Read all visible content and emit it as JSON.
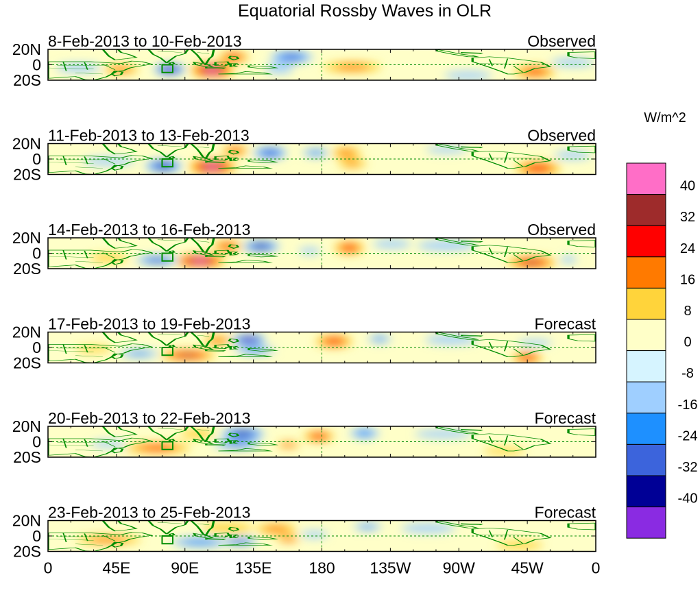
{
  "title": "Equatorial Rossby Waves in OLR",
  "colorbar": {
    "unit_label": "W/m^2",
    "tick_labels": [
      "40",
      "32",
      "24",
      "16",
      "8",
      "0",
      "-8",
      "-16",
      "-24",
      "-32",
      "-40"
    ],
    "colors_top_to_bottom": [
      "#ff6ec7",
      "#9e2b2b",
      "#ff0000",
      "#ff7a00",
      "#ffd43b",
      "#ffffc8",
      "#d6f4ff",
      "#9fcfff",
      "#1e90ff",
      "#3c64dc",
      "#000096",
      "#8a2be2"
    ]
  },
  "x_axis": {
    "tick_labels": [
      "0",
      "45E",
      "90E",
      "135E",
      "180",
      "135W",
      "90W",
      "45W",
      "0"
    ],
    "lon_range": [
      0,
      360
    ]
  },
  "y_axis": {
    "tick_labels": [
      "20N",
      "0",
      "20S"
    ],
    "lat_range": [
      -20,
      20
    ]
  },
  "panels": [
    {
      "date_range": "8-Feb-2013 to 10-Feb-2013",
      "status": "Observed"
    },
    {
      "date_range": "11-Feb-2013 to 13-Feb-2013",
      "status": "Observed"
    },
    {
      "date_range": "14-Feb-2013 to 16-Feb-2013",
      "status": "Observed"
    },
    {
      "date_range": "17-Feb-2013 to 19-Feb-2013",
      "status": "Forecast"
    },
    {
      "date_range": "20-Feb-2013 to 22-Feb-2013",
      "status": "Forecast"
    },
    {
      "date_range": "23-Feb-2013 to 25-Feb-2013",
      "status": "Forecast"
    }
  ],
  "anomaly_blobs": [
    [
      {
        "lon": 108,
        "lat": -7,
        "rx": 14,
        "ry": 10,
        "value": 42
      },
      {
        "lon": 80,
        "lat": -6,
        "rx": 10,
        "ry": 7,
        "value": -42
      },
      {
        "lon": 48,
        "lat": -6,
        "rx": 12,
        "ry": 6,
        "value": 22
      },
      {
        "lon": 122,
        "lat": 10,
        "rx": 10,
        "ry": 7,
        "value": 28
      },
      {
        "lon": 160,
        "lat": 10,
        "rx": 14,
        "ry": 8,
        "value": -26
      },
      {
        "lon": 200,
        "lat": -3,
        "rx": 20,
        "ry": 7,
        "value": 18
      },
      {
        "lon": 152,
        "lat": -5,
        "rx": 10,
        "ry": 7,
        "value": -14
      },
      {
        "lon": 320,
        "lat": -9,
        "rx": 14,
        "ry": 8,
        "value": 24
      },
      {
        "lon": 250,
        "lat": 8,
        "rx": 30,
        "ry": 8,
        "value": 6
      },
      {
        "lon": 20,
        "lat": -4,
        "rx": 16,
        "ry": 6,
        "value": -14
      },
      {
        "lon": 276,
        "lat": -14,
        "rx": 18,
        "ry": 6,
        "value": -10
      },
      {
        "lon": 345,
        "lat": 3,
        "rx": 16,
        "ry": 6,
        "value": -12
      }
    ],
    [
      {
        "lon": 108,
        "lat": -10,
        "rx": 15,
        "ry": 10,
        "value": 42
      },
      {
        "lon": 76,
        "lat": -9,
        "rx": 12,
        "ry": 8,
        "value": -34
      },
      {
        "lon": 123,
        "lat": 11,
        "rx": 9,
        "ry": 6,
        "value": 26
      },
      {
        "lon": 146,
        "lat": 8,
        "rx": 11,
        "ry": 8,
        "value": -28
      },
      {
        "lon": 176,
        "lat": 8,
        "rx": 9,
        "ry": 5,
        "value": -22
      },
      {
        "lon": 196,
        "lat": 8,
        "rx": 10,
        "ry": 7,
        "value": 20
      },
      {
        "lon": 200,
        "lat": -6,
        "rx": 10,
        "ry": 6,
        "value": 16
      },
      {
        "lon": 322,
        "lat": -12,
        "rx": 15,
        "ry": 9,
        "value": 28
      },
      {
        "lon": 40,
        "lat": -3,
        "rx": 20,
        "ry": 6,
        "value": -10
      },
      {
        "lon": 262,
        "lat": 12,
        "rx": 16,
        "ry": 5,
        "value": -10
      },
      {
        "lon": 345,
        "lat": 5,
        "rx": 14,
        "ry": 6,
        "value": -10
      }
    ],
    [
      {
        "lon": 100,
        "lat": -10,
        "rx": 16,
        "ry": 9,
        "value": 42
      },
      {
        "lon": 72,
        "lat": -9,
        "rx": 14,
        "ry": 6,
        "value": -28
      },
      {
        "lon": 118,
        "lat": 9,
        "rx": 10,
        "ry": 7,
        "value": 26
      },
      {
        "lon": 140,
        "lat": 9,
        "rx": 12,
        "ry": 7,
        "value": -34
      },
      {
        "lon": 172,
        "lat": 3,
        "rx": 8,
        "ry": 5,
        "value": -12
      },
      {
        "lon": 198,
        "lat": 7,
        "rx": 10,
        "ry": 8,
        "value": 28
      },
      {
        "lon": 226,
        "lat": 12,
        "rx": 14,
        "ry": 6,
        "value": -12
      },
      {
        "lon": 318,
        "lat": -12,
        "rx": 16,
        "ry": 8,
        "value": 32
      },
      {
        "lon": 40,
        "lat": -6,
        "rx": 14,
        "ry": 6,
        "value": 12
      },
      {
        "lon": 262,
        "lat": 10,
        "rx": 22,
        "ry": 7,
        "value": -12
      },
      {
        "lon": 342,
        "lat": -8,
        "rx": 6,
        "ry": 5,
        "value": -14
      }
    ],
    [
      {
        "lon": 92,
        "lat": -10,
        "rx": 18,
        "ry": 7,
        "value": 32
      },
      {
        "lon": 112,
        "lat": 9,
        "rx": 10,
        "ry": 6,
        "value": 22
      },
      {
        "lon": 132,
        "lat": 10,
        "rx": 11,
        "ry": 7,
        "value": -40
      },
      {
        "lon": 136,
        "lat": -4,
        "rx": 14,
        "ry": 5,
        "value": -20
      },
      {
        "lon": 60,
        "lat": -8,
        "rx": 14,
        "ry": 5,
        "value": -18
      },
      {
        "lon": 188,
        "lat": 8,
        "rx": 12,
        "ry": 8,
        "value": 28
      },
      {
        "lon": 218,
        "lat": 11,
        "rx": 8,
        "ry": 5,
        "value": -18
      },
      {
        "lon": 315,
        "lat": -13,
        "rx": 10,
        "ry": 7,
        "value": 30
      },
      {
        "lon": 30,
        "lat": -2,
        "rx": 14,
        "ry": 5,
        "value": 10
      },
      {
        "lon": 265,
        "lat": 10,
        "rx": 20,
        "ry": 7,
        "value": -10
      },
      {
        "lon": 320,
        "lat": 6,
        "rx": 14,
        "ry": 5,
        "value": -8
      }
    ],
    [
      {
        "lon": 72,
        "lat": -8,
        "rx": 22,
        "ry": 7,
        "value": 24
      },
      {
        "lon": 128,
        "lat": 10,
        "rx": 14,
        "ry": 8,
        "value": -34
      },
      {
        "lon": 98,
        "lat": 10,
        "rx": 12,
        "ry": 6,
        "value": 14
      },
      {
        "lon": 124,
        "lat": -4,
        "rx": 16,
        "ry": 5,
        "value": -24
      },
      {
        "lon": 158,
        "lat": -4,
        "rx": 8,
        "ry": 4,
        "value": 24
      },
      {
        "lon": 178,
        "lat": 7,
        "rx": 10,
        "ry": 7,
        "value": 28
      },
      {
        "lon": 208,
        "lat": 11,
        "rx": 10,
        "ry": 7,
        "value": -20
      },
      {
        "lon": 40,
        "lat": -3,
        "rx": 14,
        "ry": 5,
        "value": -10
      },
      {
        "lon": 260,
        "lat": 10,
        "rx": 22,
        "ry": 6,
        "value": -10
      },
      {
        "lon": 300,
        "lat": -12,
        "rx": 16,
        "ry": 5,
        "value": 10
      }
    ],
    [
      {
        "lon": 40,
        "lat": -5,
        "rx": 22,
        "ry": 6,
        "value": 20
      },
      {
        "lon": 100,
        "lat": -8,
        "rx": 20,
        "ry": 6,
        "value": -22
      },
      {
        "lon": 126,
        "lat": -7,
        "rx": 12,
        "ry": 5,
        "value": -30
      },
      {
        "lon": 118,
        "lat": 10,
        "rx": 18,
        "ry": 7,
        "value": 14
      },
      {
        "lon": 150,
        "lat": 9,
        "rx": 14,
        "ry": 7,
        "value": 20
      },
      {
        "lon": 158,
        "lat": -4,
        "rx": 8,
        "ry": 4,
        "value": 26
      },
      {
        "lon": 175,
        "lat": 2,
        "rx": 10,
        "ry": 5,
        "value": -12
      },
      {
        "lon": 210,
        "lat": 12,
        "rx": 10,
        "ry": 5,
        "value": -16
      },
      {
        "lon": 250,
        "lat": 10,
        "rx": 22,
        "ry": 7,
        "value": -8
      },
      {
        "lon": 310,
        "lat": -12,
        "rx": 18,
        "ry": 6,
        "value": 10
      }
    ]
  ],
  "reference_box": {
    "lon_min": 75,
    "lon_max": 82,
    "lat_min": -10,
    "lat_max": 0
  },
  "colors": {
    "coast": "#008c00",
    "guide": "#008c00"
  }
}
